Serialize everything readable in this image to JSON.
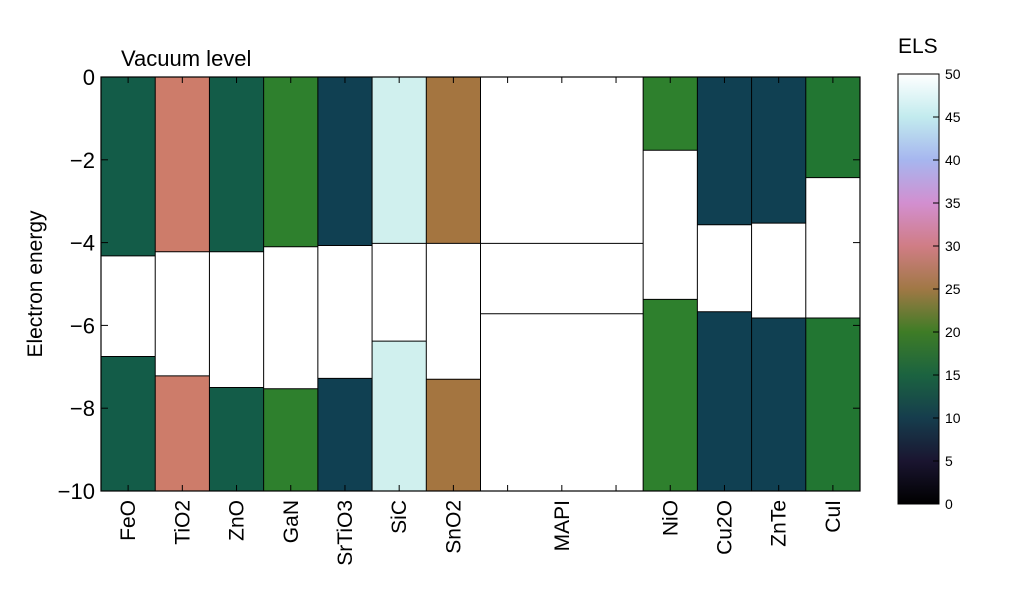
{
  "chart_data": {
    "type": "bar",
    "title": "Vacuum level",
    "xlabel": "",
    "ylabel": "Electron energy",
    "ylim": [
      -10,
      0
    ],
    "yticks": [
      0,
      -2,
      -4,
      -6,
      -8,
      -10
    ],
    "ytick_labels": [
      "0",
      "−2",
      "−4",
      "−6",
      "−8",
      "−10"
    ],
    "grid": false,
    "colorbar": {
      "label": "ELS",
      "range": [
        0,
        50
      ],
      "ticks": [
        "0",
        "5",
        "10",
        "15",
        "20",
        "25",
        "30",
        "35",
        "40",
        "45",
        "50"
      ],
      "colormap": "cubehelix"
    },
    "materials": [
      {
        "name": "FeO",
        "width": 1,
        "cb": -4.32,
        "vb": -6.75,
        "els": 15
      },
      {
        "name": "TiO2",
        "width": 1,
        "cb": -4.22,
        "vb": -7.22,
        "els": 30
      },
      {
        "name": "ZnO",
        "width": 1,
        "cb": -4.22,
        "vb": -7.5,
        "els": 15
      },
      {
        "name": "GaN",
        "width": 1,
        "cb": -4.1,
        "vb": -7.53,
        "els": 20
      },
      {
        "name": "SrTiO3",
        "width": 1,
        "cb": -4.07,
        "vb": -7.28,
        "els": 12
      },
      {
        "name": "SiC",
        "width": 1,
        "cb": -4.02,
        "vb": -6.38,
        "els": 45
      },
      {
        "name": "SnO2",
        "width": 1,
        "cb": -4.02,
        "vb": -7.3,
        "els": 25
      },
      {
        "name": "MAPI",
        "width": 3,
        "cb": -4.02,
        "vb": -5.72,
        "els": 50
      },
      {
        "name": "NiO",
        "width": 1,
        "cb": -1.77,
        "vb": -5.37,
        "els": 20
      },
      {
        "name": "Cu2O",
        "width": 1,
        "cb": -3.57,
        "vb": -5.67,
        "els": 12
      },
      {
        "name": "ZnTe",
        "width": 1,
        "cb": -3.53,
        "vb": -5.82,
        "els": 12
      },
      {
        "name": "CuI",
        "width": 1,
        "cb": -2.43,
        "vb": -5.82,
        "els": 18
      }
    ]
  }
}
